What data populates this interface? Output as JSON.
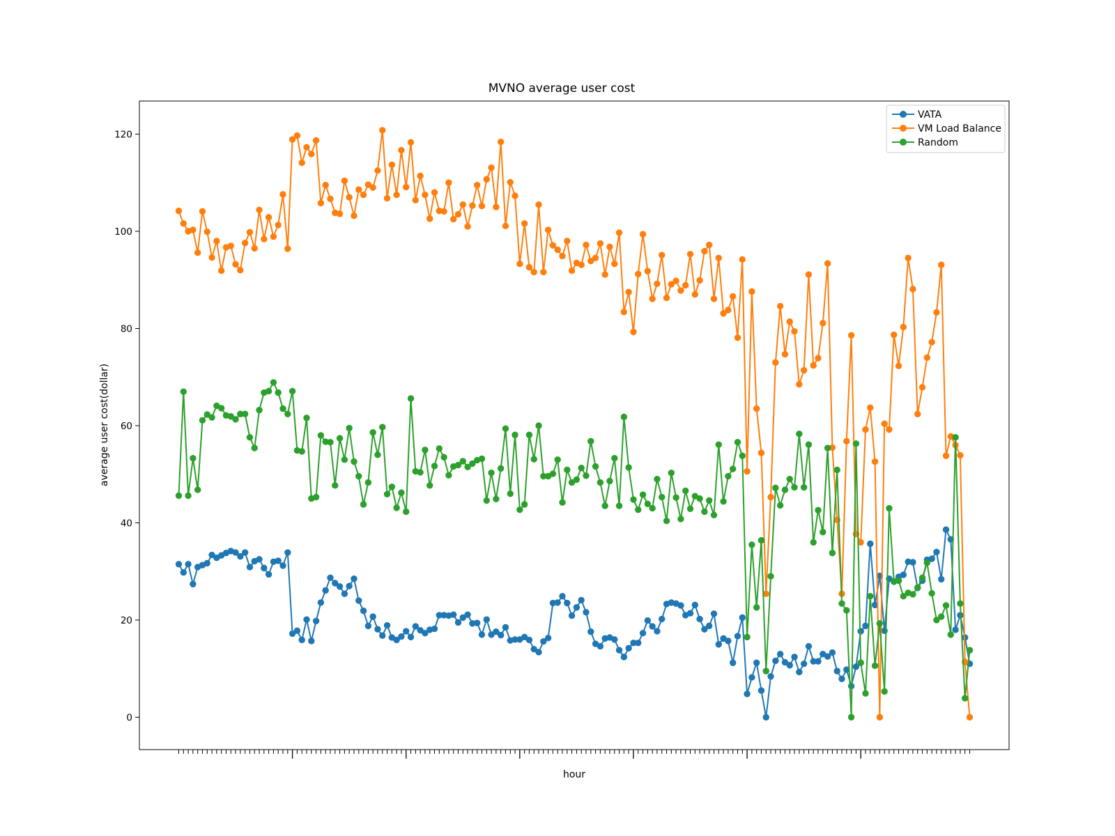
{
  "chart_data": {
    "type": "line",
    "title": "MVNO average user cost",
    "xlabel": "hour",
    "ylabel": "average user cost(dollar)",
    "ylim": [
      -6,
      127
    ],
    "yticks": [
      0,
      20,
      40,
      60,
      80,
      100,
      120
    ],
    "x_tick_labels": [],
    "legend_position": "top-right",
    "grid": false,
    "series": [
      {
        "name": "VATA",
        "color": "#1f77b4",
        "values": [
          31.5,
          29.8,
          31.5,
          27.4,
          30.9,
          31.3,
          31.7,
          33.4,
          32.8,
          33.3,
          33.8,
          34.2,
          33.9,
          33.1,
          33.9,
          30.9,
          32.1,
          32.5,
          30.7,
          29.4,
          32.0,
          32.2,
          31.2,
          33.9,
          17.2,
          17.8,
          15.9,
          20.1,
          15.7,
          19.8,
          23.6,
          26.1,
          28.7,
          27.6,
          26.9,
          25.4,
          27.0,
          28.5,
          24.0,
          21.9,
          18.8,
          20.7,
          18.1,
          16.8,
          18.9,
          16.4,
          15.9,
          16.6,
          17.7,
          16.5,
          18.7,
          17.9,
          17.3,
          18.0,
          18.2,
          21.0,
          21.0,
          20.9,
          21.1,
          19.5,
          20.5,
          21.1,
          19.3,
          19.4,
          17.0,
          20.1,
          17.0,
          17.6,
          16.9,
          18.5,
          15.8,
          16.0,
          16.0,
          16.5,
          15.9,
          14.0,
          13.4,
          15.6,
          16.3,
          23.5,
          23.6,
          24.9,
          23.5,
          20.9,
          22.6,
          24.1,
          21.6,
          17.6,
          15.1,
          14.6,
          16.2,
          16.4,
          16.0,
          13.8,
          12.4,
          14.2,
          15.3,
          15.3,
          17.3,
          19.9,
          18.7,
          17.7,
          20.2,
          23.3,
          23.6,
          23.4,
          23.0,
          21.0,
          21.4,
          23.1,
          20.2,
          18.1,
          18.8,
          21.3,
          15.0,
          16.2,
          15.7,
          11.2,
          16.7,
          20.5,
          4.8,
          8.2,
          11.2,
          5.5,
          0.0,
          8.4,
          11.6,
          13.0,
          11.3,
          10.7,
          12.4,
          9.3,
          11.0,
          14.6,
          11.5,
          11.5,
          13.0,
          12.5,
          13.3,
          9.5,
          7.9,
          9.8,
          6.4,
          10.4,
          17.7,
          18.8,
          35.7,
          23.1,
          29.1,
          17.8,
          28.5,
          27.9,
          28.9,
          29.3,
          32.0,
          31.9,
          26.6,
          28.1,
          32.4,
          32.6,
          34.0,
          28.4,
          38.6,
          36.6,
          18.0,
          21.0,
          16.4,
          11.0
        ]
      },
      {
        "name": "VM Load Balance",
        "color": "#ff7f0e",
        "values": [
          104.2,
          101.6,
          100.0,
          100.3,
          95.6,
          104.1,
          99.9,
          94.6,
          98.0,
          91.9,
          96.7,
          97.0,
          93.2,
          92.0,
          97.6,
          99.8,
          96.5,
          104.4,
          98.4,
          102.9,
          98.9,
          101.3,
          107.6,
          96.4,
          118.9,
          119.7,
          114.1,
          117.3,
          115.9,
          118.7,
          105.8,
          109.5,
          106.7,
          103.8,
          103.6,
          110.4,
          107.0,
          103.2,
          108.6,
          107.5,
          109.6,
          109.0,
          112.5,
          120.8,
          106.8,
          113.7,
          107.5,
          116.7,
          109.1,
          118.3,
          106.4,
          111.4,
          107.5,
          102.6,
          108.0,
          104.2,
          104.1,
          110.0,
          102.5,
          103.5,
          105.5,
          101.0,
          105.3,
          109.5,
          105.2,
          110.7,
          113.1,
          105.0,
          118.4,
          101.1,
          110.1,
          107.3,
          93.3,
          101.6,
          92.6,
          91.6,
          105.5,
          91.6,
          100.3,
          97.1,
          96.2,
          94.9,
          98.0,
          91.9,
          93.5,
          93.1,
          97.2,
          93.9,
          94.5,
          97.5,
          91.1,
          96.8,
          93.3,
          99.7,
          83.4,
          87.5,
          79.3,
          91.2,
          99.4,
          91.8,
          86.1,
          89.2,
          95.1,
          86.3,
          89.1,
          89.8,
          87.8,
          88.9,
          95.3,
          87.0,
          89.9,
          95.9,
          97.2,
          86.1,
          94.5,
          83.1,
          83.8,
          86.6,
          78.1,
          94.2,
          50.6,
          87.6,
          63.5,
          54.4,
          25.4,
          45.3,
          73.0,
          84.6,
          74.7,
          81.4,
          79.4,
          68.5,
          71.4,
          91.1,
          72.4,
          73.9,
          81.1,
          93.4,
          55.5,
          40.6,
          25.4,
          56.8,
          78.6,
          37.7,
          36.0,
          59.2,
          63.7,
          52.6,
          0.0,
          60.4,
          59.2,
          78.7,
          72.3,
          80.3,
          94.5,
          88.1,
          62.4,
          67.9,
          74.0,
          77.2,
          83.3,
          93.1,
          53.8,
          57.8,
          56.0,
          53.9,
          11.4,
          0.0
        ]
      },
      {
        "name": "Random",
        "color": "#2ca02c",
        "values": [
          45.6,
          67.0,
          45.6,
          53.3,
          46.8,
          61.1,
          62.3,
          61.7,
          64.1,
          63.6,
          62.1,
          61.9,
          61.3,
          62.4,
          62.4,
          57.6,
          55.4,
          63.2,
          66.8,
          67.1,
          68.9,
          66.8,
          63.5,
          62.4,
          67.1,
          54.9,
          54.7,
          61.6,
          45.0,
          45.3,
          58.0,
          56.7,
          56.6,
          47.7,
          57.4,
          53.0,
          59.5,
          52.6,
          49.6,
          43.8,
          48.3,
          58.6,
          54.0,
          59.7,
          45.9,
          47.4,
          43.1,
          46.2,
          42.3,
          65.6,
          50.6,
          50.4,
          55.0,
          47.7,
          51.7,
          55.3,
          53.5,
          49.8,
          51.6,
          51.9,
          52.7,
          51.5,
          52.2,
          52.9,
          53.2,
          44.6,
          50.3,
          44.9,
          51.2,
          59.4,
          46.0,
          58.1,
          42.7,
          43.8,
          58.1,
          53.1,
          60.0,
          49.6,
          49.6,
          50.1,
          53.0,
          44.2,
          50.9,
          48.3,
          48.9,
          51.3,
          49.7,
          56.8,
          51.6,
          48.3,
          43.5,
          48.6,
          53.3,
          43.5,
          61.8,
          51.4,
          44.8,
          42.7,
          45.8,
          43.9,
          43.0,
          49.0,
          45.3,
          40.4,
          50.3,
          45.2,
          40.8,
          46.6,
          42.9,
          45.5,
          45.0,
          42.3,
          44.6,
          41.6,
          56.1,
          44.4,
          49.6,
          51.1,
          56.6,
          53.8,
          16.5,
          35.5,
          22.6,
          36.4,
          9.5,
          29.0,
          47.2,
          43.6,
          46.8,
          49.0,
          47.3,
          58.3,
          47.3,
          56.1,
          36.0,
          42.6,
          38.1,
          55.4,
          33.8,
          50.9,
          23.4,
          22.0,
          0.0,
          56.3,
          11.2,
          4.9,
          24.9,
          10.6,
          19.3,
          5.3,
          43.0,
          28.0,
          28.1,
          24.9,
          25.6,
          25.3,
          26.7,
          28.7,
          31.8,
          25.5,
          20.0,
          20.7,
          23.0,
          17.0,
          57.6,
          23.4,
          3.9,
          13.8
        ]
      }
    ]
  }
}
